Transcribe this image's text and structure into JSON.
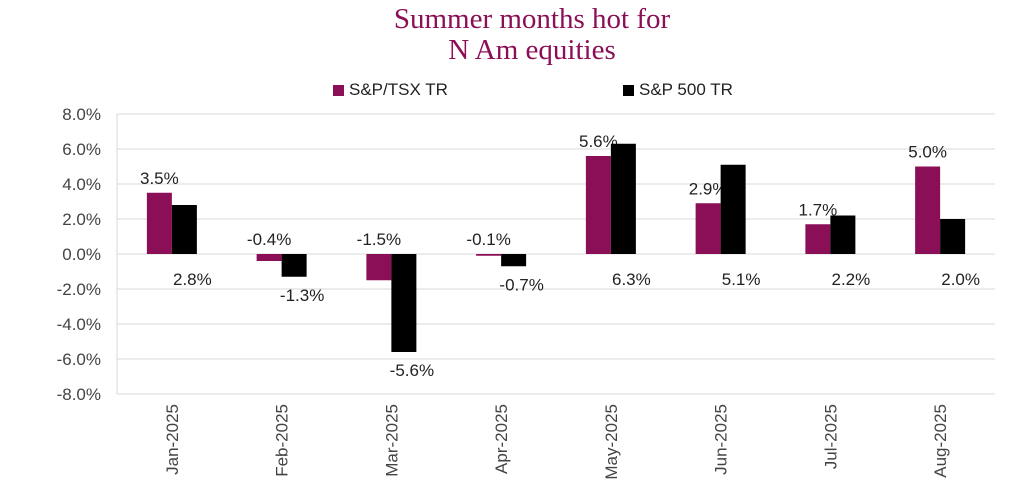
{
  "chart_data": {
    "type": "bar",
    "title_lines": [
      "Summer months hot for",
      "N Am equities"
    ],
    "categories": [
      "Jan-2025",
      "Feb-2025",
      "Mar-2025",
      "Apr-2025",
      "May-2025",
      "Jun-2025",
      "Jul-2025",
      "Aug-2025"
    ],
    "series": [
      {
        "name": "S&P/TSX TR",
        "color": "#8b0f56",
        "values": [
          3.5,
          -0.4,
          -1.5,
          -0.1,
          5.6,
          2.9,
          1.7,
          5.0
        ],
        "labels": [
          "3.5%",
          "-0.4%",
          "-1.5%",
          "-0.1%",
          "5.6%",
          "2.9%",
          "1.7%",
          "5.0%"
        ]
      },
      {
        "name": "S&P 500 TR",
        "color": "#000000",
        "values": [
          2.8,
          -1.3,
          -5.6,
          -0.7,
          6.3,
          5.1,
          2.2,
          2.0
        ],
        "labels": [
          "2.8%",
          "-1.3%",
          "-5.6%",
          "-0.7%",
          "6.3%",
          "5.1%",
          "2.2%",
          "2.0%"
        ]
      }
    ],
    "y_ticks": [
      "8.0%",
      "6.0%",
      "4.0%",
      "2.0%",
      "0.0%",
      "-2.0%",
      "-4.0%",
      "-6.0%",
      "-8.0%"
    ],
    "ylim": [
      -8,
      8
    ],
    "ylabel": "",
    "xlabel": "",
    "grid": true,
    "legend_position": "top-center"
  },
  "colors": {
    "title": "#8b0f56",
    "grid": "#d9d9d9",
    "axis_text": "#444444"
  }
}
